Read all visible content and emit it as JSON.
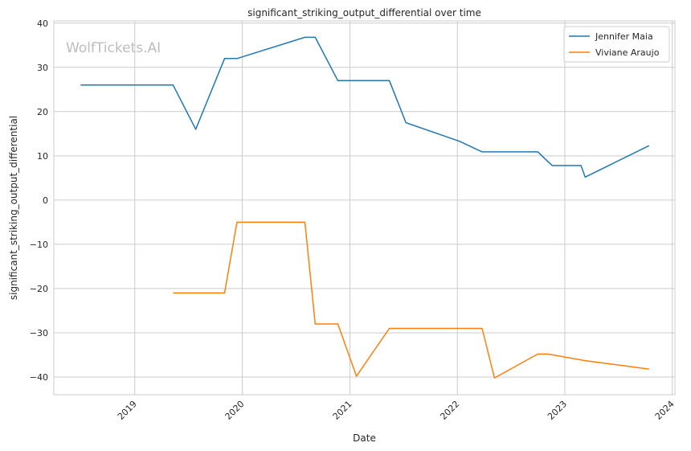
{
  "watermark": "WolfTickets.AI",
  "chart_data": {
    "type": "line",
    "title": "significant_striking_output_differential over time",
    "xlabel": "Date",
    "ylabel": "significant_striking_output_differential",
    "xlim": [
      "2018-04-01",
      "2024-01-10"
    ],
    "ylim": [
      -44,
      40.5
    ],
    "x_ticks": [
      "2019-01-01",
      "2020-01-01",
      "2021-01-01",
      "2022-01-01",
      "2023-01-01",
      "2024-01-01"
    ],
    "x_tick_labels": [
      "2019",
      "2020",
      "2021",
      "2022",
      "2023",
      "2024"
    ],
    "y_ticks": [
      -40,
      -30,
      -20,
      -10,
      0,
      10,
      20,
      30,
      40
    ],
    "grid": true,
    "legend_position": "top-right",
    "series": [
      {
        "name": "Jennifer Maia",
        "color": "#1f77b4",
        "points": [
          [
            "2018-07-01",
            26
          ],
          [
            "2019-05-11",
            26
          ],
          [
            "2019-07-27",
            16
          ],
          [
            "2019-11-02",
            32
          ],
          [
            "2019-12-14",
            32
          ],
          [
            "2020-08-01",
            36.8
          ],
          [
            "2020-09-05",
            36.8
          ],
          [
            "2020-11-21",
            27
          ],
          [
            "2021-05-15",
            27
          ],
          [
            "2021-07-10",
            17.5
          ],
          [
            "2022-01-08",
            13.3
          ],
          [
            "2022-03-26",
            10.9
          ],
          [
            "2022-10-01",
            10.9
          ],
          [
            "2022-11-19",
            7.8
          ],
          [
            "2023-02-25",
            7.8
          ],
          [
            "2023-03-11",
            5.2
          ],
          [
            "2023-10-14",
            12.3
          ]
        ]
      },
      {
        "name": "Viviane Araujo",
        "color": "#ff7f0e",
        "points": [
          [
            "2019-05-11",
            -21
          ],
          [
            "2019-11-02",
            -21
          ],
          [
            "2019-12-14",
            -5
          ],
          [
            "2020-08-01",
            -5
          ],
          [
            "2020-09-05",
            -28
          ],
          [
            "2020-11-21",
            -28
          ],
          [
            "2021-01-23",
            -39.8
          ],
          [
            "2021-05-15",
            -29
          ],
          [
            "2022-03-26",
            -29
          ],
          [
            "2022-05-07",
            -40.2
          ],
          [
            "2022-10-01",
            -34.8
          ],
          [
            "2022-11-05",
            -34.8
          ],
          [
            "2023-03-11",
            -36.3
          ],
          [
            "2023-10-14",
            -38.2
          ]
        ]
      }
    ]
  }
}
